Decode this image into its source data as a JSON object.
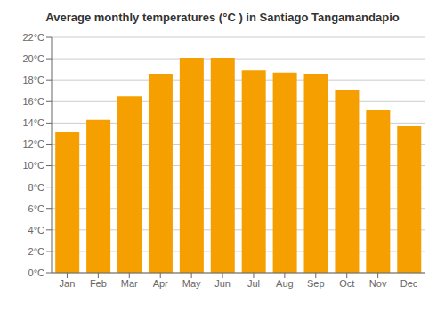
{
  "chart_data": {
    "type": "bar",
    "title": "Average monthly temperatures (°C ) in Santiago Tangamandapio",
    "categories": [
      "Jan",
      "Feb",
      "Mar",
      "Apr",
      "May",
      "Jun",
      "Jul",
      "Aug",
      "Sep",
      "Oct",
      "Nov",
      "Dec"
    ],
    "values": [
      13.2,
      14.3,
      16.5,
      18.6,
      20.1,
      20.1,
      18.9,
      18.7,
      18.6,
      17.1,
      15.2,
      13.7
    ],
    "color": "#F5A000",
    "ylim": [
      0,
      22
    ],
    "yticks": [
      {
        "value": 0,
        "label": "0°C"
      },
      {
        "value": 2,
        "label": "2°C"
      },
      {
        "value": 4,
        "label": "4°C"
      },
      {
        "value": 6,
        "label": "6°C"
      },
      {
        "value": 8,
        "label": "8°C"
      },
      {
        "value": 10,
        "label": "10°C"
      },
      {
        "value": 12,
        "label": "12°C"
      },
      {
        "value": 14,
        "label": "14°C"
      },
      {
        "value": 16,
        "label": "16°C"
      },
      {
        "value": 18,
        "label": "18°C"
      },
      {
        "value": 20,
        "label": "20°C"
      },
      {
        "value": 22,
        "label": "22°C"
      }
    ],
    "grid": true
  }
}
